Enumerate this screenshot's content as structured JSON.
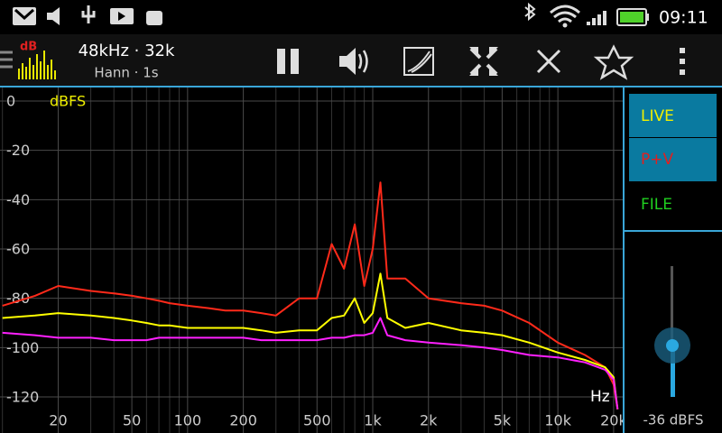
{
  "status_bar": {
    "time": "09:11"
  },
  "toolbar": {
    "app_icon_label": "dB",
    "sample_info": "48kHz · 32k",
    "window_info": "Hann · 1s"
  },
  "side_panel": {
    "buttons": [
      "LIVE",
      "P+V",
      "FILE"
    ],
    "level_label": "-36 dBFS"
  },
  "chart_data": {
    "type": "line",
    "y_unit_label": "dBFS",
    "x_unit_label": "Hz",
    "x_log_scale": true,
    "xlim": [
      9.7,
      22400
    ],
    "ylim": [
      -125.5,
      5.5
    ],
    "yticks": [
      0,
      -20,
      -40,
      -60,
      -80,
      -100,
      -120
    ],
    "xticks": [
      20,
      50,
      100,
      200,
      500,
      {
        "value": 1000,
        "label": "1k"
      },
      {
        "value": 2000,
        "label": "2k"
      },
      {
        "value": 5000,
        "label": "5k"
      },
      {
        "value": 10000,
        "label": "10k"
      },
      {
        "value": 20000,
        "label": "20k"
      }
    ],
    "x_minor_grid": [
      10,
      30,
      40,
      60,
      70,
      80,
      90,
      300,
      400,
      600,
      700,
      800,
      900,
      3000,
      4000,
      6000,
      7000,
      8000,
      9000
    ],
    "grid": true,
    "x": [
      10,
      15,
      20,
      30,
      40,
      50,
      60,
      70,
      80,
      100,
      130,
      160,
      200,
      250,
      300,
      400,
      500,
      600,
      700,
      800,
      900,
      1000,
      1100,
      1200,
      1500,
      2000,
      3000,
      4000,
      5000,
      7000,
      10000,
      14000,
      18000,
      20000,
      21000
    ],
    "series": [
      {
        "color": "#ff2a1a",
        "values": [
          -83,
          -79,
          -75,
          -77,
          -78,
          -79,
          -80,
          -81,
          -82,
          -83,
          -84,
          -85,
          -85,
          -86,
          -87,
          -80,
          -80,
          -58,
          -68,
          -50,
          -75,
          -60,
          -33,
          -72,
          -72,
          -80,
          -82,
          -83,
          -85,
          -90,
          -98,
          -103,
          -108,
          -115,
          -125
        ]
      },
      {
        "color": "#ffff00",
        "values": [
          -88,
          -87,
          -86,
          -87,
          -88,
          -89,
          -90,
          -91,
          -91,
          -92,
          -92,
          -92,
          -92,
          -93,
          -94,
          -93,
          -93,
          -88,
          -87,
          -80,
          -90,
          -86,
          -70,
          -88,
          -92,
          -90,
          -93,
          -94,
          -95,
          -98,
          -102,
          -105,
          -108,
          -112,
          -125
        ]
      },
      {
        "color": "#ff20ff",
        "values": [
          -94,
          -95,
          -96,
          -96,
          -97,
          -97,
          -97,
          -96,
          -96,
          -96,
          -96,
          -96,
          -96,
          -97,
          -97,
          -97,
          -97,
          -96,
          -96,
          -95,
          -95,
          -94,
          -88,
          -95,
          -97,
          -98,
          -99,
          -100,
          -101,
          -103,
          -104,
          -106,
          -109,
          -113,
          -125
        ]
      }
    ]
  }
}
